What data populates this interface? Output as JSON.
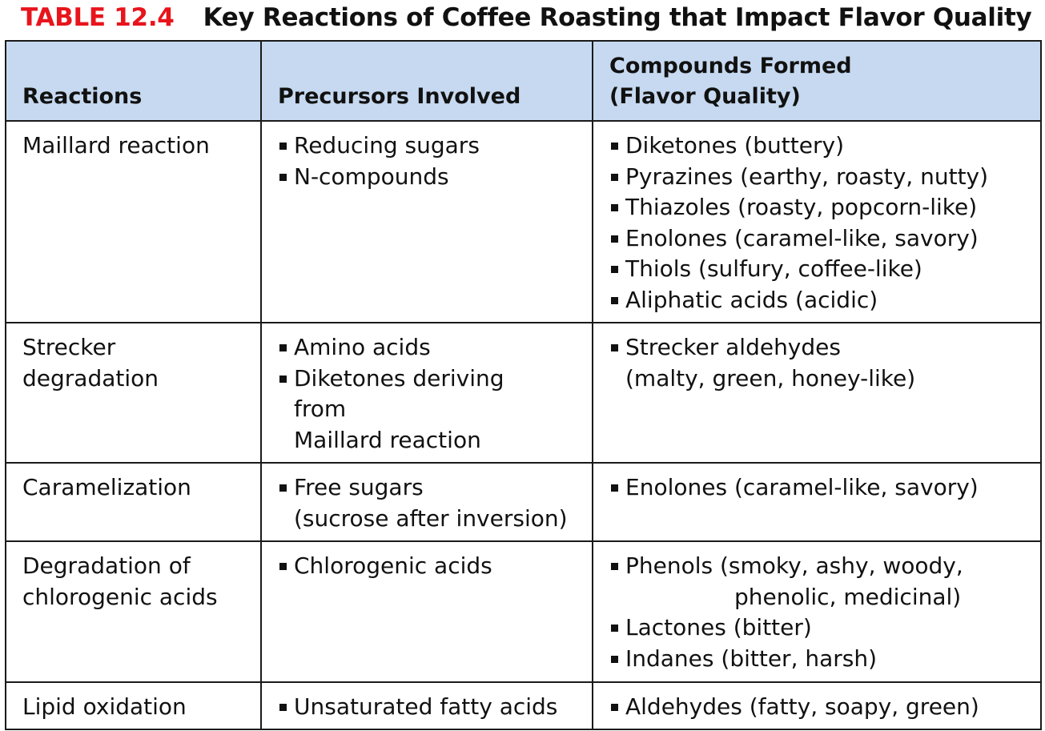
{
  "title": {
    "label": "TABLE 12.4",
    "text": "Key Reactions of Coffee Roasting that Impact Flavor Quality"
  },
  "columns": [
    [
      "Reactions"
    ],
    [
      "Precursors Involved"
    ],
    [
      "Compounds Formed",
      "(Flavor Quality)"
    ]
  ],
  "rows": [
    {
      "reaction": [
        "Maillard reaction"
      ],
      "precursors": [
        [
          "Reducing sugars"
        ],
        [
          "N-compounds"
        ]
      ],
      "compounds": [
        [
          "Diketones (buttery)"
        ],
        [
          "Pyrazines (earthy, roasty, nutty)"
        ],
        [
          "Thiazoles (roasty, popcorn-like)"
        ],
        [
          "Enolones (caramel-like, savory)"
        ],
        [
          "Thiols (sulfury, coffee-like)"
        ],
        [
          "Aliphatic acids (acidic)"
        ]
      ]
    },
    {
      "reaction": [
        "Strecker",
        "degradation"
      ],
      "precursors": [
        [
          "Amino acids"
        ],
        [
          "Diketones deriving",
          "from",
          "Maillard reaction"
        ]
      ],
      "compounds": [
        [
          "Strecker aldehydes",
          "(malty, green, honey-like)"
        ]
      ]
    },
    {
      "reaction": [
        "Caramelization"
      ],
      "precursors": [
        [
          "Free sugars",
          "(sucrose after inversion)"
        ]
      ],
      "compounds": [
        [
          "Enolones (caramel-like, savory)"
        ]
      ]
    },
    {
      "reaction": [
        "Degradation of",
        "chlorogenic acids"
      ],
      "precursors": [
        [
          "Chlorogenic acids"
        ]
      ],
      "compounds": [
        [
          "Phenols (smoky, ashy, woody,",
          "phenolic, medicinal)"
        ],
        [
          "Lactones (bitter)"
        ],
        [
          "Indanes (bitter, harsh)"
        ]
      ]
    },
    {
      "reaction": [
        "Lipid oxidation"
      ],
      "precursors": [
        [
          "Unsaturated fatty acids"
        ]
      ],
      "compounds": [
        [
          "Aldehydes (fatty, soapy, green)"
        ]
      ]
    }
  ]
}
